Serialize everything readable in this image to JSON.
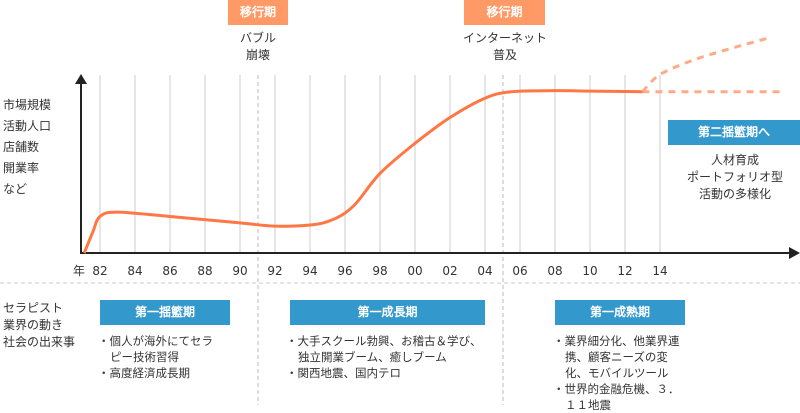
{
  "transitions": [
    {
      "label": "移行期",
      "event": [
        "バブル",
        "崩壊"
      ]
    },
    {
      "label": "移行期",
      "event": [
        "インターネット",
        "普及"
      ]
    }
  ],
  "y_axis_label": [
    "市場規模",
    "活動人口",
    "店舗数",
    "開業率",
    "など"
  ],
  "x_axis_unit": "年",
  "future": {
    "label": "第二揺籃期へ",
    "lines": [
      "人材育成",
      "ポートフォリオ型",
      "活動の多様化"
    ]
  },
  "bottom_label": [
    "セラピスト",
    "業界の動き",
    "社会の出来事"
  ],
  "phases": [
    {
      "label": "第一揺籃期",
      "items": [
        "個人が海外にてセラピー技術習得",
        "高度経済成長期"
      ]
    },
    {
      "label": "第一成長期",
      "items": [
        "大手スクール勃興、お稽古＆学び、独立開業ブーム、癒しブーム",
        "関西地震、国内テロ"
      ]
    },
    {
      "label": "第一成熟期",
      "items": [
        "業界細分化、他業界連携、顧客ニーズの変化、モバイルツール",
        "世界的金融危機、３．１１地震"
      ]
    }
  ],
  "colors": {
    "curve": "#ff7744",
    "transition": "#ff9966",
    "phase": "#3399cc"
  },
  "chart_data": {
    "type": "line",
    "x_ticks": [
      "82",
      "84",
      "86",
      "88",
      "90",
      "92",
      "94",
      "96",
      "98",
      "00",
      "02",
      "04",
      "06",
      "08",
      "10",
      "12",
      "14"
    ],
    "ylabel": "市場規模 活動人口 店舗数 開業率 など",
    "xlabel": "年",
    "series": [
      {
        "name": "actual",
        "style": "solid",
        "x": [
          1981.1,
          1981.6,
          1982,
          1983,
          1986,
          1990,
          1992,
          1994,
          1995.3,
          1996.5,
          1998,
          2000,
          2002,
          2004,
          2005.5,
          2008,
          2010,
          2013
        ],
        "y": [
          0,
          10,
          17,
          19,
          17,
          14,
          12.5,
          13,
          15.5,
          22,
          37,
          51,
          63,
          72,
          75,
          75.5,
          75.3,
          75
        ]
      },
      {
        "name": "projection-growth",
        "style": "dashed",
        "x": [
          2013,
          2014,
          2016,
          2018,
          2020.2
        ],
        "y": [
          75,
          83,
          90,
          95,
          100
        ]
      },
      {
        "name": "projection-flat",
        "style": "dashed",
        "x": [
          2013,
          2021
        ],
        "y": [
          75,
          75
        ]
      }
    ],
    "dividers": [
      1991,
      2005
    ]
  }
}
